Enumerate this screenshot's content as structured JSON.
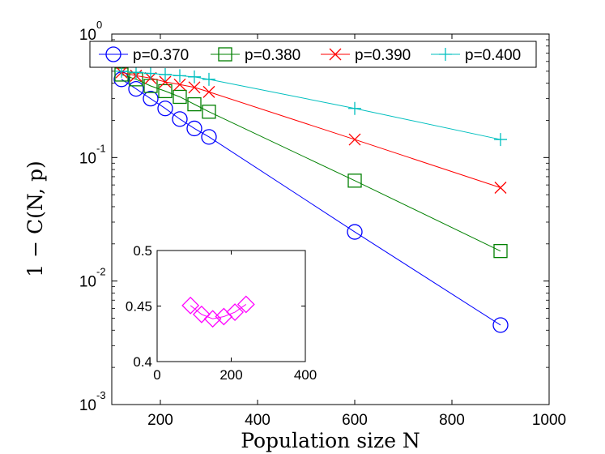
{
  "chart_data": [
    {
      "type": "line",
      "title": "",
      "xlabel": "Population size N",
      "ylabel": "1 − C(N, p)",
      "xlim": [
        100,
        1000
      ],
      "ylim": [
        0.001,
        1
      ],
      "yscale": "log",
      "grid": false,
      "legend": "top, horizontal",
      "x": [
        120,
        150,
        180,
        210,
        240,
        270,
        300,
        600,
        900
      ],
      "xticks": [
        200,
        400,
        600,
        800,
        1000
      ],
      "yticks": [
        {
          "value": 1,
          "base": "10",
          "exp": "0"
        },
        {
          "value": 0.1,
          "base": "10",
          "exp": "-1"
        },
        {
          "value": 0.01,
          "base": "10",
          "exp": "-2"
        },
        {
          "value": 0.001,
          "base": "10",
          "exp": "-3"
        }
      ],
      "series": [
        {
          "name": "p=0.370",
          "color": "#0000ff",
          "marker": "circle",
          "values": [
            0.43,
            0.36,
            0.3,
            0.25,
            0.205,
            0.172,
            0.147,
            0.025,
            0.0044
          ]
        },
        {
          "name": "p=0.380",
          "color": "#008000",
          "marker": "square",
          "values": [
            0.47,
            0.43,
            0.38,
            0.345,
            0.31,
            0.27,
            0.235,
            0.065,
            0.0175
          ]
        },
        {
          "name": "p=0.390",
          "color": "#ff0000",
          "marker": "x",
          "values": [
            0.49,
            0.46,
            0.44,
            0.41,
            0.39,
            0.37,
            0.34,
            0.14,
            0.057
          ]
        },
        {
          "name": "p=0.400",
          "color": "#00bfbf",
          "marker": "plus",
          "values": [
            0.5,
            0.49,
            0.48,
            0.47,
            0.46,
            0.45,
            0.43,
            0.25,
            0.14
          ]
        }
      ]
    },
    {
      "type": "line",
      "title": "",
      "xlabel": "",
      "ylabel": "",
      "xlim": [
        0,
        400
      ],
      "ylim": [
        0.4,
        0.5
      ],
      "xticks": [
        0,
        200,
        400
      ],
      "yticks": [
        0.4,
        0.45,
        0.5
      ],
      "ytick_labels": [
        "0.4",
        "0.45",
        "0.5"
      ],
      "series": [
        {
          "color": "#ff00ff",
          "marker": "diamond",
          "x": [
            90,
            120,
            150,
            180,
            210,
            240
          ],
          "y": [
            0.4505,
            0.4425,
            0.4385,
            0.4405,
            0.4445,
            0.4515
          ]
        }
      ]
    }
  ]
}
